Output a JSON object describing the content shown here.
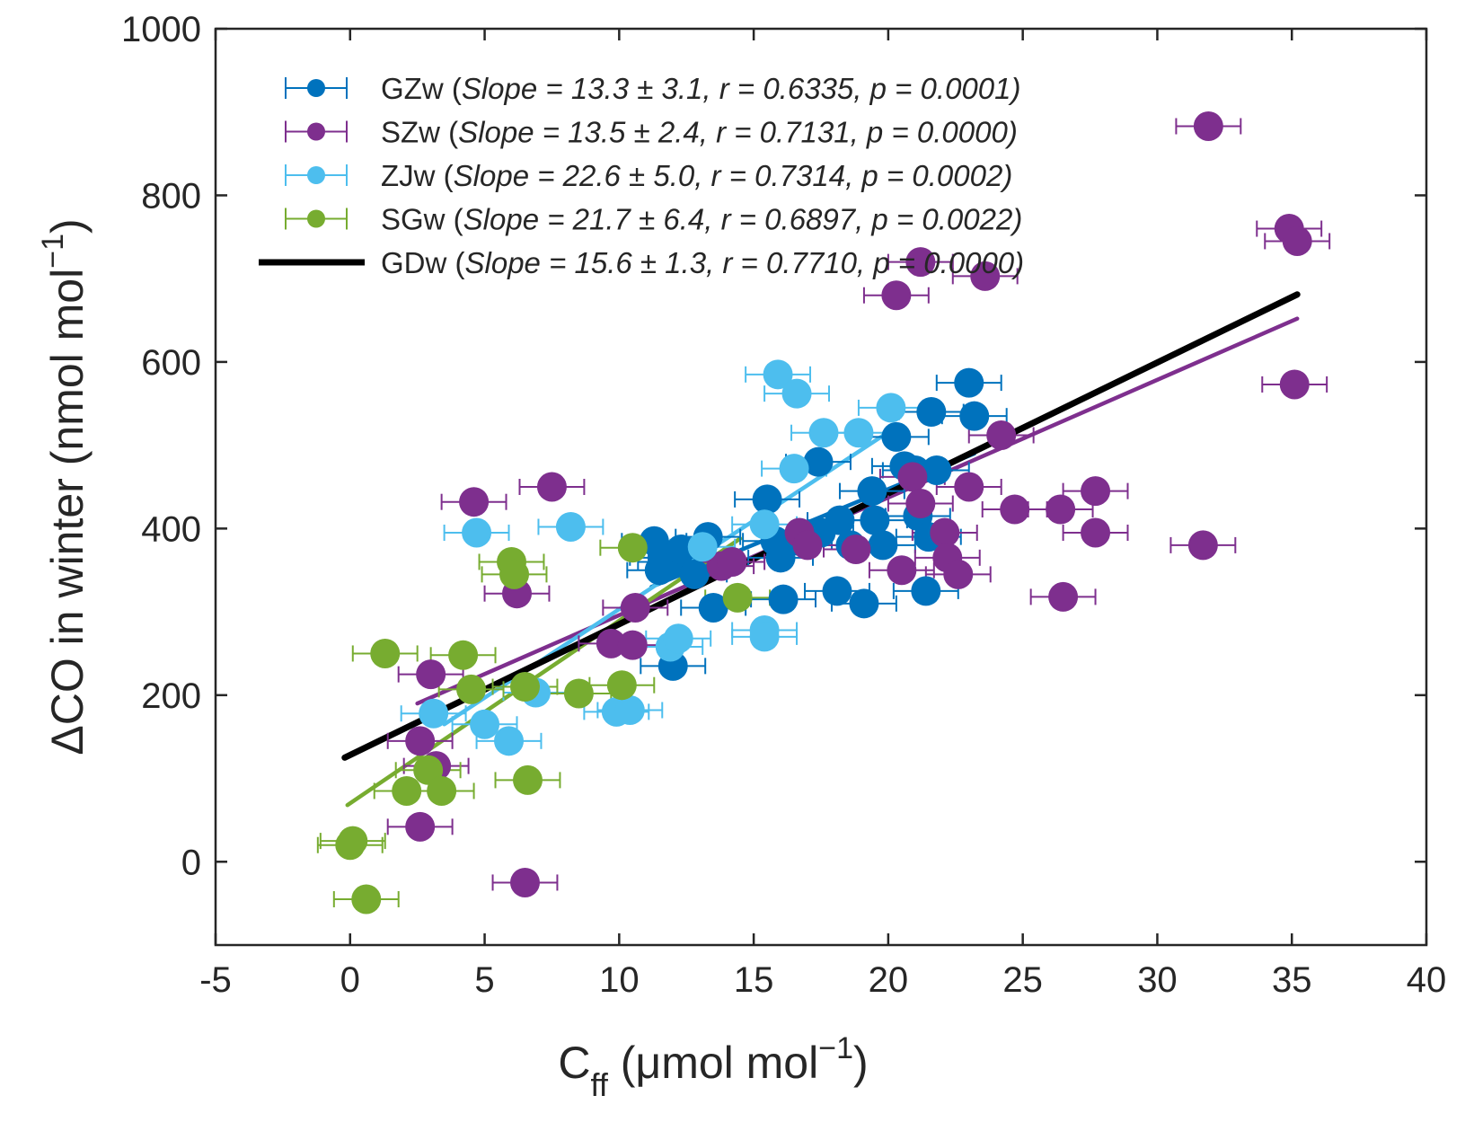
{
  "chart_data": {
    "type": "scatter",
    "xlabel": "C",
    "xlabel_subscript": "ff",
    "xlabel_unit": "(μmol mol",
    "xlabel_unit_exponent": "−1",
    "xlabel_unit_close": ")",
    "ylabel": "ΔCO in winter (nmol mol",
    "ylabel_exponent": "−1",
    "ylabel_close": ")",
    "xlim": [
      -5,
      40
    ],
    "ylim": [
      -100,
      1000
    ],
    "xticks": [
      -5,
      0,
      5,
      10,
      15,
      20,
      25,
      30,
      35,
      40
    ],
    "xtick_labels": [
      "-5",
      "0",
      "5",
      "10",
      "15",
      "20",
      "25",
      "30",
      "35",
      "40"
    ],
    "yticks": [
      0,
      200,
      400,
      600,
      800,
      1000
    ],
    "ytick_labels": [
      "0",
      "200",
      "400",
      "600",
      "800",
      "1000"
    ],
    "grid": false,
    "legend_position": "top-left",
    "xerr": 1.2,
    "series": [
      {
        "name": "GZw",
        "stats": "Slope = 13.3 ± 3.1, r = 0.6335, p = 0.0001",
        "color": "#0072BD",
        "points": [
          [
            11.3,
            385
          ],
          [
            11.6,
            365
          ],
          [
            11.9,
            360
          ],
          [
            12.3,
            375
          ],
          [
            12.8,
            345
          ],
          [
            13.3,
            390
          ],
          [
            13.5,
            305
          ],
          [
            11.5,
            350
          ],
          [
            12.0,
            235
          ],
          [
            15.5,
            435
          ],
          [
            15.8,
            385
          ],
          [
            16.0,
            365
          ],
          [
            16.1,
            315
          ],
          [
            16.7,
            385
          ],
          [
            17.4,
            480
          ],
          [
            17.5,
            395
          ],
          [
            18.1,
            325
          ],
          [
            18.2,
            410
          ],
          [
            18.6,
            380
          ],
          [
            19.1,
            310
          ],
          [
            19.4,
            445
          ],
          [
            19.5,
            410
          ],
          [
            19.8,
            380
          ],
          [
            20.3,
            510
          ],
          [
            20.6,
            475
          ],
          [
            21.0,
            470
          ],
          [
            21.1,
            415
          ],
          [
            21.4,
            325
          ],
          [
            21.5,
            390
          ],
          [
            21.6,
            540
          ],
          [
            21.8,
            470
          ],
          [
            23.0,
            575
          ],
          [
            23.2,
            535
          ]
        ],
        "fit": [
          [
            11.2,
            330
          ],
          [
            23.2,
            490
          ]
        ]
      },
      {
        "name": "SZw",
        "stats": "Slope = 13.5 ± 2.4, r = 0.7131, p = 0.0000",
        "color": "#7E2F8E",
        "points": [
          [
            2.6,
            145
          ],
          [
            2.6,
            42
          ],
          [
            3.0,
            225
          ],
          [
            3.2,
            115
          ],
          [
            4.6,
            432
          ],
          [
            6.2,
            322
          ],
          [
            7.5,
            450
          ],
          [
            6.5,
            -25
          ],
          [
            9.7,
            262
          ],
          [
            10.5,
            260
          ],
          [
            10.6,
            305
          ],
          [
            13.8,
            355
          ],
          [
            14.2,
            360
          ],
          [
            16.7,
            395
          ],
          [
            17.0,
            380
          ],
          [
            18.8,
            375
          ],
          [
            20.3,
            680
          ],
          [
            20.5,
            350
          ],
          [
            20.9,
            462
          ],
          [
            21.2,
            720
          ],
          [
            21.2,
            430
          ],
          [
            22.1,
            395
          ],
          [
            22.2,
            365
          ],
          [
            22.6,
            345
          ],
          [
            23.0,
            450
          ],
          [
            23.6,
            703
          ],
          [
            24.2,
            512
          ],
          [
            24.7,
            423
          ],
          [
            26.4,
            423
          ],
          [
            26.5,
            318
          ],
          [
            27.7,
            445
          ],
          [
            27.7,
            395
          ],
          [
            31.7,
            380
          ],
          [
            31.9,
            883
          ],
          [
            34.9,
            760
          ],
          [
            35.1,
            573
          ],
          [
            35.2,
            745
          ]
        ],
        "fit": [
          [
            2.5,
            190
          ],
          [
            35.2,
            652
          ]
        ]
      },
      {
        "name": "ZJw",
        "stats": "Slope = 22.6 ± 5.0, r = 0.7314, p = 0.0002",
        "color": "#4DBEEE",
        "points": [
          [
            3.1,
            178
          ],
          [
            4.7,
            395
          ],
          [
            5.0,
            165
          ],
          [
            5.9,
            145
          ],
          [
            6.9,
            203
          ],
          [
            8.2,
            402
          ],
          [
            9.9,
            180
          ],
          [
            10.4,
            182
          ],
          [
            11.9,
            258
          ],
          [
            12.2,
            268
          ],
          [
            13.1,
            378
          ],
          [
            15.4,
            278
          ],
          [
            15.4,
            270
          ],
          [
            15.4,
            405
          ],
          [
            15.9,
            585
          ],
          [
            16.5,
            472
          ],
          [
            16.6,
            562
          ],
          [
            17.6,
            515
          ],
          [
            18.9,
            515
          ],
          [
            20.1,
            545
          ]
        ],
        "fit": [
          [
            3.5,
            165
          ],
          [
            20.2,
            520
          ]
        ]
      },
      {
        "name": "SGw",
        "stats": "Slope = 21.7 ± 6.4, r = 0.6897, p = 0.0022",
        "color": "#77AC30",
        "points": [
          [
            0.0,
            20
          ],
          [
            0.1,
            25
          ],
          [
            0.6,
            -45
          ],
          [
            1.3,
            250
          ],
          [
            2.1,
            85
          ],
          [
            2.9,
            110
          ],
          [
            3.4,
            85
          ],
          [
            4.2,
            248
          ],
          [
            4.5,
            207
          ],
          [
            6.0,
            360
          ],
          [
            6.1,
            345
          ],
          [
            6.5,
            210
          ],
          [
            6.6,
            98
          ],
          [
            8.5,
            202
          ],
          [
            10.1,
            212
          ],
          [
            10.5,
            377
          ],
          [
            14.4,
            317
          ]
        ],
        "fit": [
          [
            -0.1,
            68
          ],
          [
            14.5,
            388
          ]
        ]
      },
      {
        "name": "GDw",
        "stats": "Slope = 15.6 ± 1.3, r = 0.7710, p = 0.0000",
        "color": "#000000",
        "line_only": true,
        "points": [],
        "fit": [
          [
            -0.2,
            125
          ],
          [
            35.2,
            681
          ]
        ]
      }
    ]
  }
}
